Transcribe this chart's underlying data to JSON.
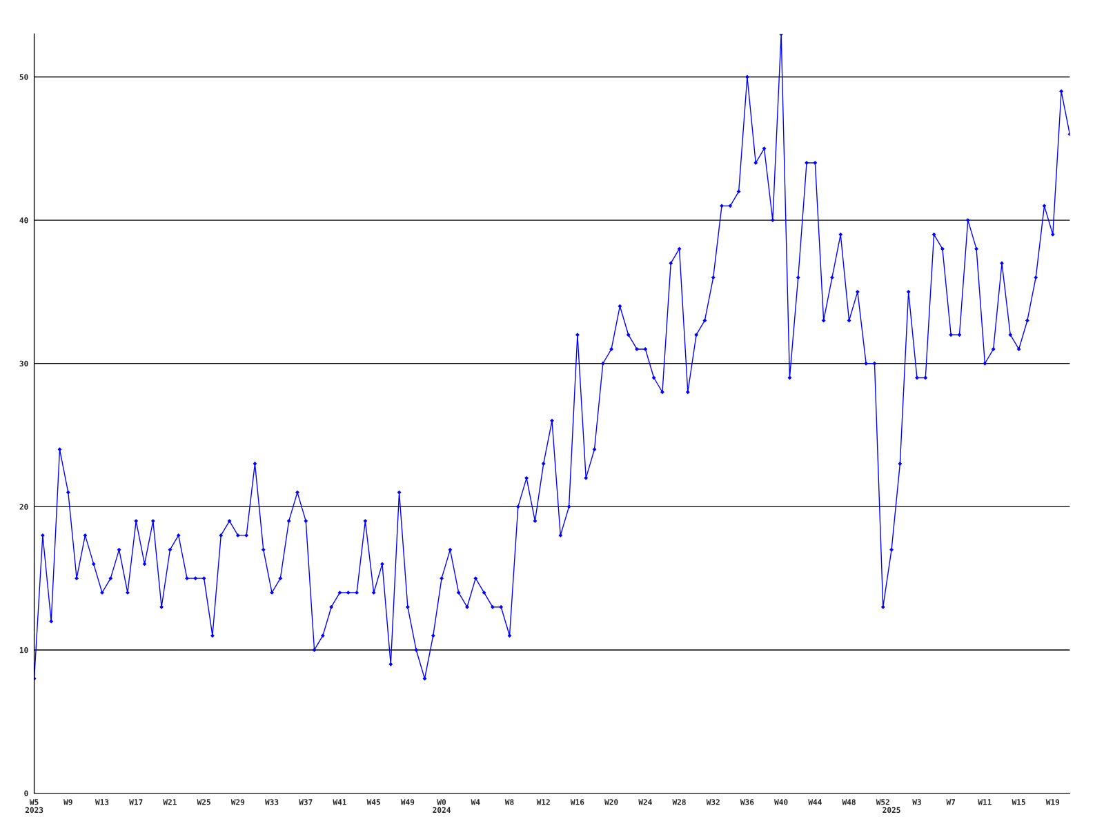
{
  "chart_data": {
    "type": "line",
    "categories": [
      "W5\n2023",
      null,
      null,
      null,
      "W9",
      null,
      null,
      null,
      "W13",
      null,
      null,
      null,
      "W17",
      null,
      null,
      null,
      "W21",
      null,
      null,
      null,
      "W25",
      null,
      null,
      null,
      "W29",
      null,
      null,
      null,
      "W33",
      null,
      null,
      null,
      "W37",
      null,
      null,
      null,
      "W41",
      null,
      null,
      null,
      "W45",
      null,
      null,
      null,
      "W49",
      null,
      null,
      null,
      "W0\n2024",
      null,
      null,
      null,
      "W4",
      null,
      null,
      null,
      "W8",
      null,
      null,
      null,
      "W12",
      null,
      null,
      null,
      "W16",
      null,
      null,
      null,
      "W20",
      null,
      null,
      null,
      "W24",
      null,
      null,
      null,
      "W28",
      null,
      null,
      null,
      "W32",
      null,
      null,
      null,
      "W36",
      null,
      null,
      null,
      "W40",
      null,
      null,
      null,
      "W44",
      null,
      null,
      null,
      "W48",
      null,
      null,
      null,
      "W52",
      "\n2025",
      null,
      null,
      "W3",
      null,
      null,
      null,
      "W7",
      null,
      null,
      null,
      "W11",
      null,
      null,
      null,
      "W15",
      null,
      null,
      null,
      "W19",
      null,
      null
    ],
    "series": [
      {
        "color": "#0000ff",
        "values": [
          8,
          18,
          12,
          24,
          21,
          15,
          18,
          16,
          14,
          15,
          17,
          14,
          19,
          16,
          19,
          13,
          17,
          18,
          15,
          15,
          15,
          11,
          18,
          19,
          18,
          18,
          23,
          17,
          14,
          15,
          19,
          21,
          19,
          10,
          11,
          13,
          14,
          14,
          14,
          19,
          14,
          16,
          9,
          21,
          13,
          10,
          8,
          11,
          15,
          17,
          14,
          13,
          15,
          14,
          13,
          13,
          11,
          20,
          22,
          19,
          23,
          26,
          18,
          20,
          32,
          22,
          24,
          30,
          31,
          34,
          32,
          31,
          31,
          29,
          28,
          37,
          38,
          28,
          32,
          33,
          36,
          41,
          41,
          42,
          50,
          44,
          45,
          40,
          53,
          29,
          36,
          44,
          44,
          33,
          36,
          39,
          33,
          35,
          30,
          30,
          13,
          17,
          23,
          35,
          29,
          29,
          39,
          38,
          32,
          32,
          40,
          38,
          30,
          31,
          37,
          32,
          31,
          33,
          36,
          41,
          39,
          49,
          46
        ]
      }
    ],
    "ylim": [
      0,
      53
    ],
    "yticks": [
      0,
      10,
      20,
      30,
      40,
      50
    ],
    "grid": "y",
    "marker": "diamond",
    "line_style": "solid",
    "legend": false
  }
}
